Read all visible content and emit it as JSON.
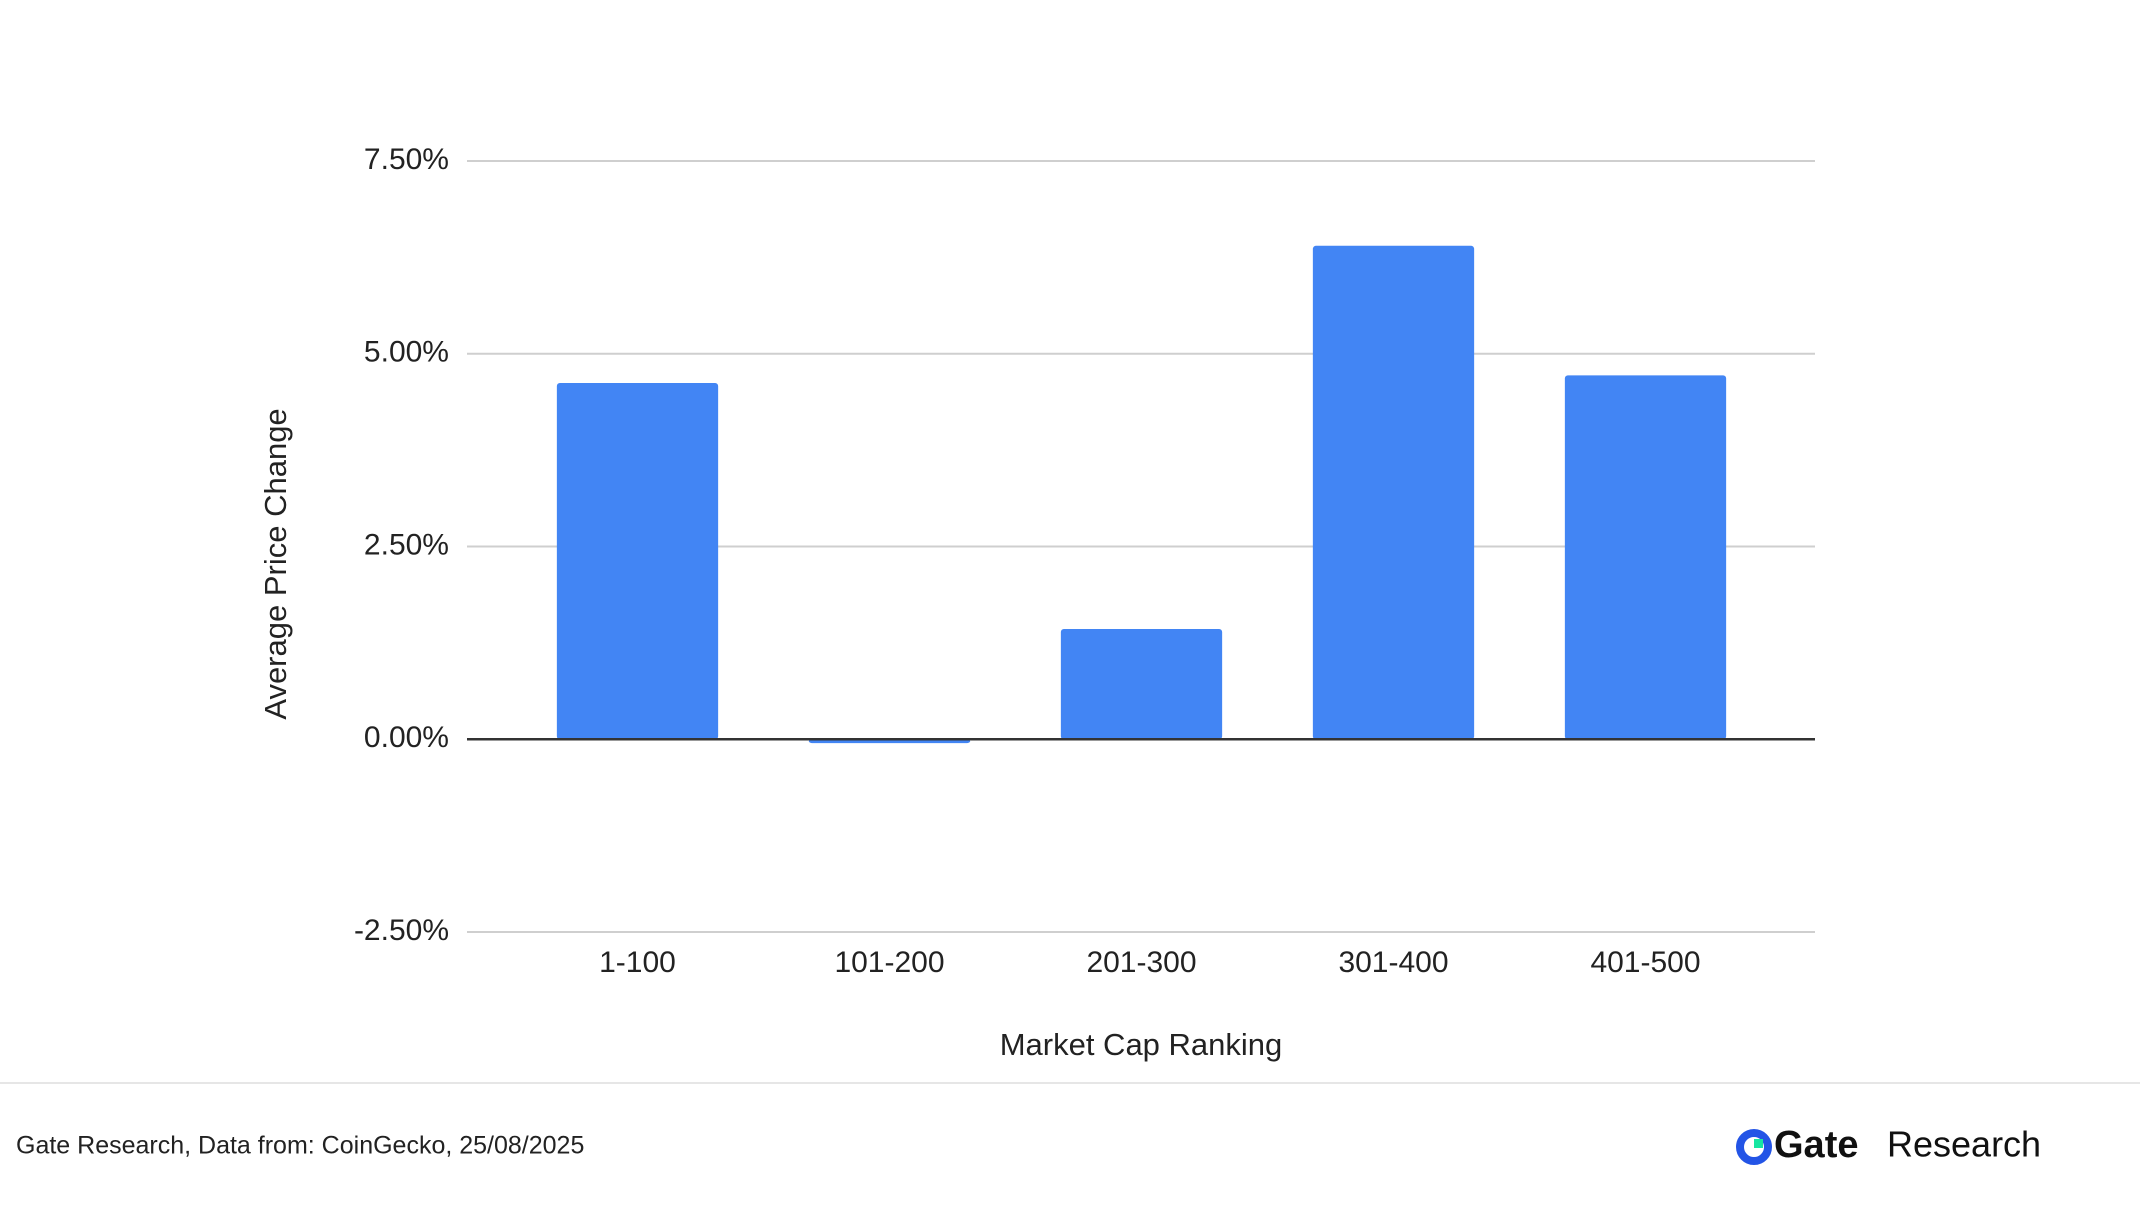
{
  "chart_data": {
    "type": "bar",
    "categories": [
      "1-100",
      "101-200",
      "201-300",
      "301-400",
      "401-500"
    ],
    "values": [
      4.62,
      -0.05,
      1.43,
      6.4,
      4.72
    ],
    "color": "#4285f4",
    "xlabel": "Market Cap Ranking",
    "ylabel": "Average Price Change",
    "ylim": [
      -2.5,
      7.5
    ],
    "yticks": [
      {
        "value": -2.5,
        "label": "-2.50%"
      },
      {
        "value": 0,
        "label": "0.00%"
      },
      {
        "value": 2.5,
        "label": "2.50%"
      },
      {
        "value": 5,
        "label": "5.00%"
      },
      {
        "value": 7.5,
        "label": "7.50%"
      }
    ],
    "grid": true
  },
  "footer": {
    "source": "Gate Research, Data from: CoinGecko, 25/08/2025",
    "brand": "Gate",
    "brand_suffix": "Research"
  }
}
